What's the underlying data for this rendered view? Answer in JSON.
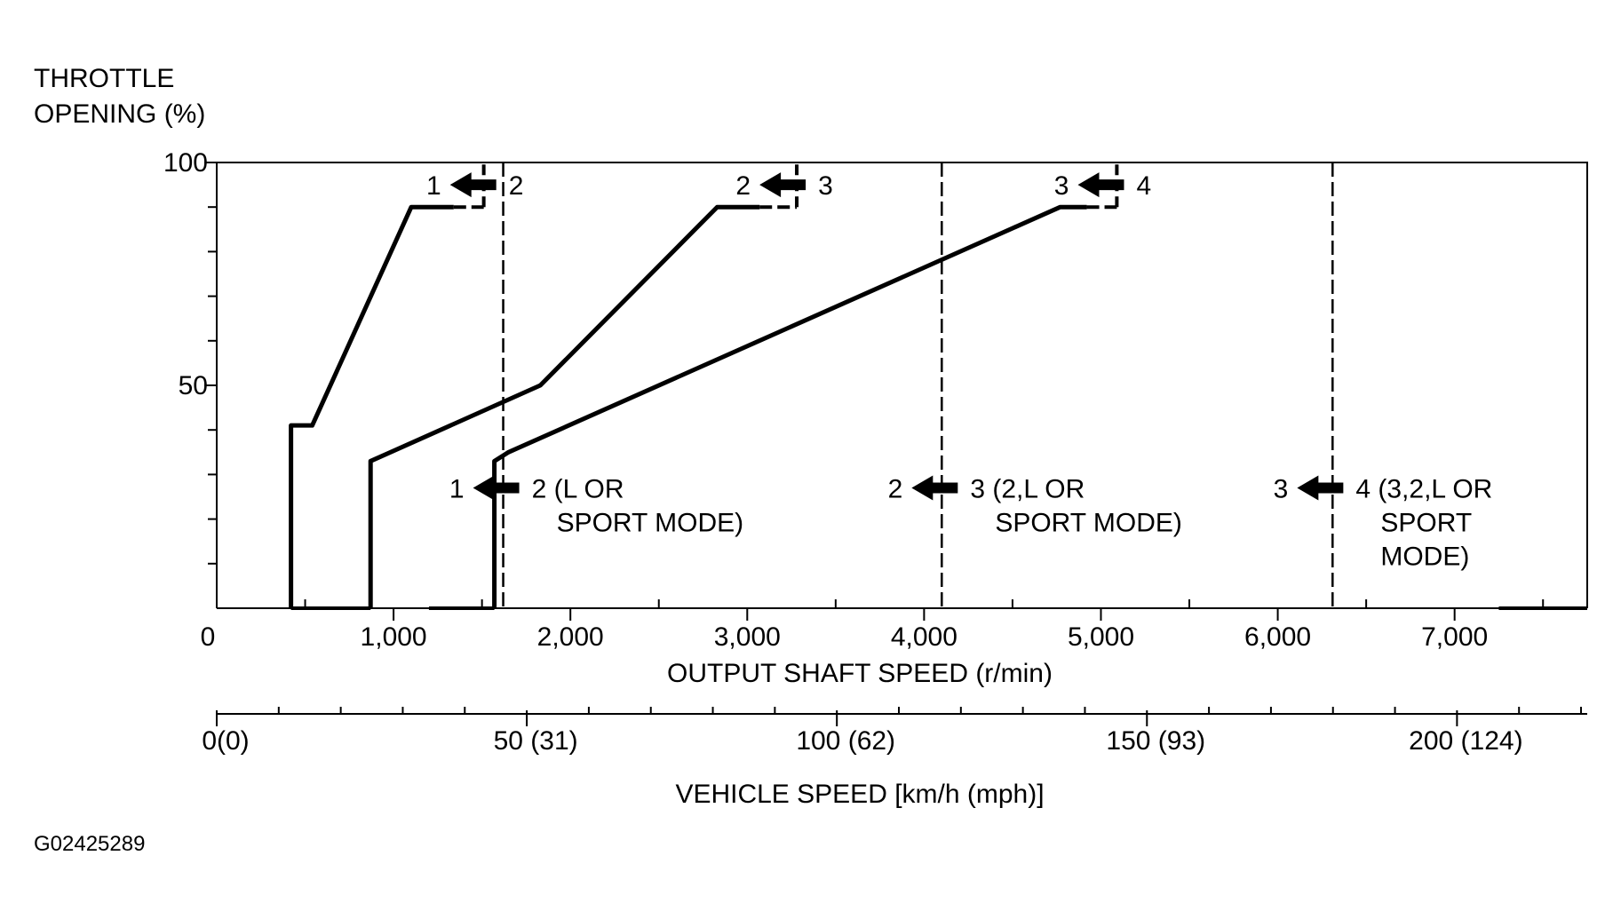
{
  "figure_id": "G02425289",
  "chart_data": {
    "type": "line",
    "title": "",
    "ylabel_line1": "THROTTLE",
    "ylabel_line2": "OPENING (%)",
    "xlabel": "OUTPUT SHAFT SPEED (r/min)",
    "x2label": "VEHICLE SPEED [km/h (mph)]",
    "xlim": [
      0,
      7750
    ],
    "ylim": [
      0,
      100
    ],
    "yticks": [
      0,
      10,
      20,
      30,
      40,
      50,
      60,
      70,
      80,
      90,
      100
    ],
    "ytick_labels": [
      {
        "value": 100,
        "text": "100"
      },
      {
        "value": 50,
        "text": "50"
      }
    ],
    "xticks_minor": [
      500,
      1500,
      2500,
      3500,
      4500,
      5500,
      6500,
      7500
    ],
    "xtick_labels": [
      {
        "value": 0,
        "text": "0"
      },
      {
        "value": 1000,
        "text": "1,000"
      },
      {
        "value": 2000,
        "text": "2,000"
      },
      {
        "value": 3000,
        "text": "3,000"
      },
      {
        "value": 4000,
        "text": "4,000"
      },
      {
        "value": 5000,
        "text": "5,000"
      },
      {
        "value": 6000,
        "text": "6,000"
      },
      {
        "value": 7000,
        "text": "7,000"
      }
    ],
    "x2lim": [
      0,
      221
    ],
    "x2ticks": [
      0,
      10,
      20,
      30,
      40,
      50,
      60,
      70,
      80,
      90,
      100,
      110,
      120,
      130,
      140,
      150,
      160,
      170,
      180,
      190,
      200,
      210,
      220
    ],
    "x2tick_labels": [
      {
        "value": 0,
        "text": "0(0)"
      },
      {
        "value": 50,
        "text": "50 (31)"
      },
      {
        "value": 100,
        "text": "100 (62)"
      },
      {
        "value": 150,
        "text": "150 (93)"
      },
      {
        "value": 200,
        "text": "200 (124)"
      }
    ],
    "series": [
      {
        "style": "solid",
        "points": [
          [
            420,
            0
          ],
          [
            420,
            41
          ],
          [
            540,
            41
          ],
          [
            1100,
            90
          ],
          [
            1340,
            90
          ]
        ],
        "dashed_tail": [
          [
            1340,
            90
          ],
          [
            1510,
            90
          ]
        ],
        "vertical_tail": [
          [
            1510,
            90
          ],
          [
            1510,
            100
          ]
        ]
      },
      {
        "style": "solid",
        "points": [
          [
            870,
            0
          ],
          [
            870,
            33
          ],
          [
            1830,
            50
          ],
          [
            2830,
            90
          ],
          [
            3070,
            90
          ]
        ],
        "dashed_tail": [
          [
            3070,
            90
          ],
          [
            3280,
            90
          ]
        ],
        "vertical_tail": [
          [
            3280,
            90
          ],
          [
            3280,
            100
          ]
        ]
      },
      {
        "style": "solid",
        "points": [
          [
            1570,
            0
          ],
          [
            1570,
            33
          ],
          [
            1650,
            35
          ],
          [
            4770,
            90
          ],
          [
            4920,
            90
          ]
        ],
        "dashed_tail": [
          [
            4920,
            90
          ],
          [
            5090,
            90
          ]
        ],
        "vertical_tail": [
          [
            5090,
            90
          ],
          [
            5090,
            100
          ]
        ]
      }
    ],
    "baseline_segments": [
      [
        420,
        870
      ],
      [
        1200,
        1570
      ],
      [
        7250,
        7750
      ]
    ],
    "dashed_verticals": [
      1620,
      4100,
      6310
    ],
    "annotations": [
      {
        "from": "1",
        "to": "2",
        "x": 1450,
        "y": 95,
        "lines": []
      },
      {
        "from": "2",
        "to": "3",
        "x": 3200,
        "y": 95,
        "lines": []
      },
      {
        "from": "3",
        "to": "4",
        "x": 5000,
        "y": 95,
        "lines": []
      },
      {
        "from": "1",
        "to": "2 (L OR",
        "x": 1580,
        "y": 27,
        "lines": [
          "SPORT MODE)"
        ]
      },
      {
        "from": "2",
        "to": "3 (2,L OR",
        "x": 4060,
        "y": 27,
        "lines": [
          "SPORT MODE)"
        ]
      },
      {
        "from": "3",
        "to": "4 (3,2,L OR",
        "x": 6240,
        "y": 27,
        "lines": [
          "SPORT",
          "MODE)"
        ]
      }
    ]
  }
}
